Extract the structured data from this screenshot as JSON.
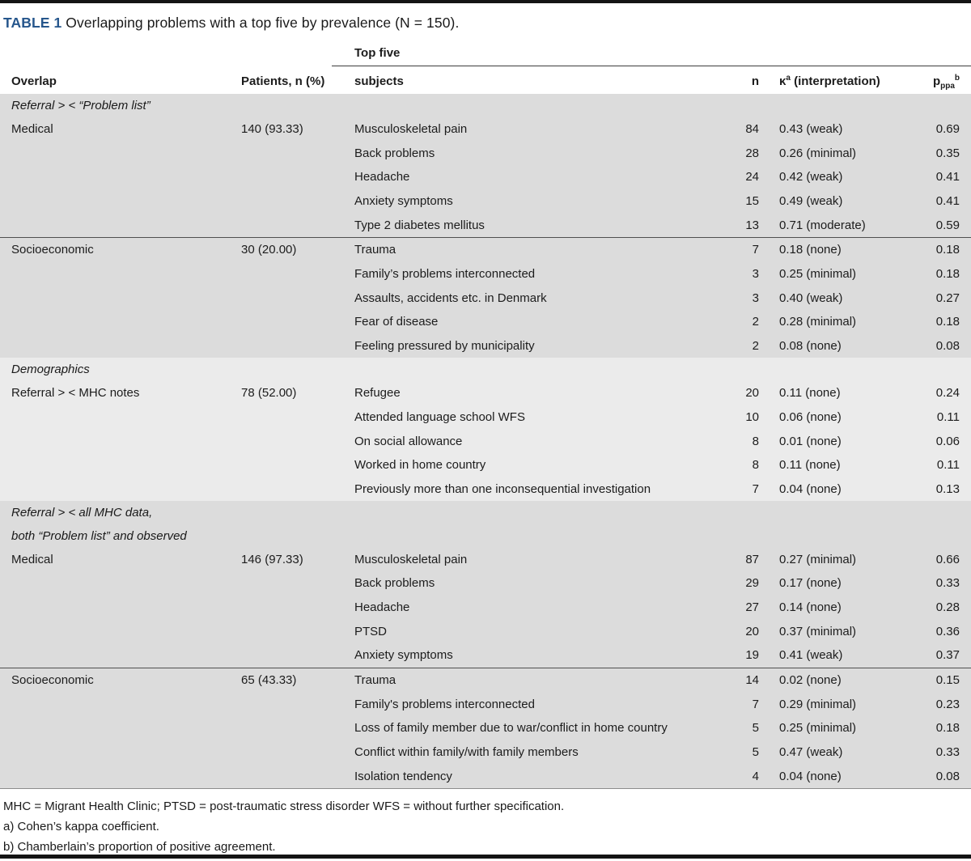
{
  "title": {
    "tag": "TABLE 1",
    "text": " Overlapping problems with a top five by prevalence (N = 150)."
  },
  "table": {
    "spanner_label": "Top five",
    "columns": {
      "overlap": "Overlap",
      "patients": "Patients, n (%)",
      "subjects": "subjects",
      "n": "n",
      "kappa_symbol": "κ",
      "kappa_sup": "a",
      "kappa_rest": " (interpretation)",
      "ppa_base": "p",
      "ppa_sub": "ppa",
      "ppa_sup": "b"
    }
  },
  "sections": [
    {
      "shade": "dark",
      "header_lines": [
        "Referral > < “Problem list”"
      ],
      "groups": [
        {
          "overlap": "Medical",
          "patients": "140 (93.33)",
          "rows": [
            {
              "subject": "Musculoskeletal pain",
              "n": "84",
              "kappa": "0.43 (weak)",
              "pppa": "0.69"
            },
            {
              "subject": "Back problems",
              "n": "28",
              "kappa": "0.26 (minimal)",
              "pppa": "0.35"
            },
            {
              "subject": "Headache",
              "n": "24",
              "kappa": "0.42 (weak)",
              "pppa": "0.41"
            },
            {
              "subject": "Anxiety symptoms",
              "n": "15",
              "kappa": "0.49 (weak)",
              "pppa": "0.41"
            },
            {
              "subject": "Type 2 diabetes mellitus",
              "n": "13",
              "kappa": "0.71 (moderate)",
              "pppa": "0.59"
            }
          ]
        },
        {
          "overlap": "Socioeconomic",
          "patients": "30 (20.00)",
          "rows": [
            {
              "subject": "Trauma",
              "n": "7",
              "kappa": "0.18 (none)",
              "pppa": "0.18"
            },
            {
              "subject": "Family’s problems interconnected",
              "n": "3",
              "kappa": "0.25 (minimal)",
              "pppa": "0.18"
            },
            {
              "subject": "Assaults, accidents etc. in Denmark",
              "n": "3",
              "kappa": "0.40 (weak)",
              "pppa": "0.27"
            },
            {
              "subject": "Fear of disease",
              "n": "2",
              "kappa": "0.28 (minimal)",
              "pppa": "0.18"
            },
            {
              "subject": "Feeling pressured by municipality",
              "n": "2",
              "kappa": "0.08 (none)",
              "pppa": "0.08"
            }
          ]
        }
      ]
    },
    {
      "shade": "light",
      "header_lines": [
        "Demographics"
      ],
      "groups": [
        {
          "overlap": "Referral > < MHC notes",
          "patients": "78 (52.00)",
          "rows": [
            {
              "subject": "Refugee",
              "n": "20",
              "kappa": "0.11 (none)",
              "pppa": "0.24"
            },
            {
              "subject": "Attended language school WFS",
              "n": "10",
              "kappa": "0.06 (none)",
              "pppa": "0.11"
            },
            {
              "subject": "On social allowance",
              "n": "8",
              "kappa": "0.01 (none)",
              "pppa": "0.06"
            },
            {
              "subject": "Worked in home country",
              "n": "8",
              "kappa": "0.11 (none)",
              "pppa": "0.11"
            },
            {
              "subject": "Previously more than one inconsequential investigation",
              "n": "7",
              "kappa": "0.04 (none)",
              "pppa": "0.13"
            }
          ]
        }
      ]
    },
    {
      "shade": "dark",
      "header_lines": [
        "Referral > < all MHC data,",
        "both “Problem list” and observed"
      ],
      "groups": [
        {
          "overlap": "Medical",
          "patients": "146 (97.33)",
          "rows": [
            {
              "subject": "Musculoskeletal pain",
              "n": "87",
              "kappa": "0.27 (minimal)",
              "pppa": "0.66"
            },
            {
              "subject": "Back problems",
              "n": "29",
              "kappa": "0.17 (none)",
              "pppa": "0.33"
            },
            {
              "subject": "Headache",
              "n": "27",
              "kappa": "0.14 (none)",
              "pppa": "0.28"
            },
            {
              "subject": "PTSD",
              "n": "20",
              "kappa": "0.37 (minimal)",
              "pppa": "0.36"
            },
            {
              "subject": "Anxiety symptoms",
              "n": "19",
              "kappa": "0.41 (weak)",
              "pppa": "0.37"
            }
          ]
        },
        {
          "overlap": "Socioeconomic",
          "patients": "65 (43.33)",
          "rows": [
            {
              "subject": "Trauma",
              "n": "14",
              "kappa": "0.02 (none)",
              "pppa": "0.15"
            },
            {
              "subject": "Family's problems interconnected",
              "n": "7",
              "kappa": "0.29 (minimal)",
              "pppa": "0.23"
            },
            {
              "subject": "Loss of family member due to war/conflict in home country",
              "n": "5",
              "kappa": "0.25 (minimal)",
              "pppa": "0.18"
            },
            {
              "subject": "Conflict within family/with family members",
              "n": "5",
              "kappa": "0.47 (weak)",
              "pppa": "0.33"
            },
            {
              "subject": "Isolation tendency",
              "n": "4",
              "kappa": "0.04 (none)",
              "pppa": "0.08"
            }
          ]
        }
      ]
    }
  ],
  "footnotes": [
    "MHC = Migrant Health Clinic; PTSD = post-traumatic stress disorder WFS = without further specification.",
    "a) Cohen’s kappa coefficient.",
    "b) Chamberlain’s proportion of positive agreement."
  ]
}
